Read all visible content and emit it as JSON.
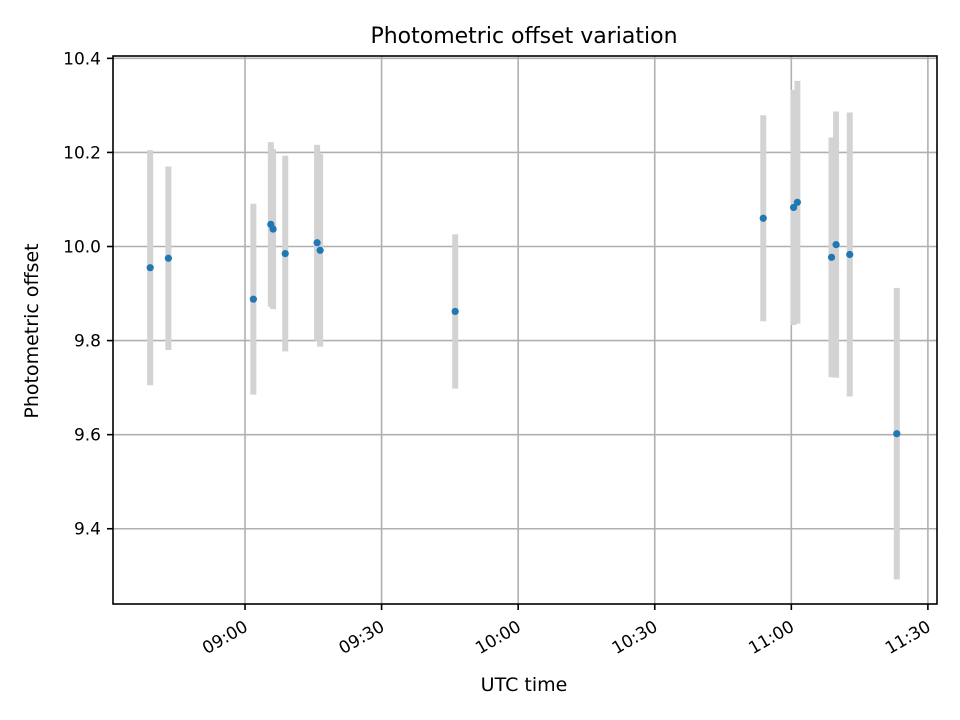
{
  "chart_data": {
    "type": "scatter",
    "title": "Photometric offset variation",
    "xlabel": "UTC time",
    "ylabel": "Photometric offset",
    "xlim": [
      "08:31:00",
      "11:32:00"
    ],
    "ylim": [
      9.24,
      10.405
    ],
    "grid": true,
    "x_ticks": [
      "09:00",
      "09:30",
      "10:00",
      "10:30",
      "11:00",
      "11:30"
    ],
    "y_ticks": [
      9.4,
      9.6,
      9.8,
      10.0,
      10.2,
      10.4
    ],
    "y_tick_labels": [
      "9.4",
      "9.6",
      "9.8",
      "10.0",
      "10.2",
      "10.4"
    ],
    "colors": {
      "point": "#1f77b4",
      "errorbar": "#d3d3d3",
      "grid": "#b0b0b0"
    },
    "points": [
      {
        "x": "08:39:10",
        "y": 9.955,
        "yerr": 0.25
      },
      {
        "x": "08:43:10",
        "y": 9.975,
        "yerr": 0.195
      },
      {
        "x": "09:01:50",
        "y": 9.888,
        "yerr": 0.203
      },
      {
        "x": "09:05:40",
        "y": 10.047,
        "yerr": 0.175
      },
      {
        "x": "09:06:10",
        "y": 10.037,
        "yerr": 0.17
      },
      {
        "x": "09:08:50",
        "y": 9.985,
        "yerr": 0.208
      },
      {
        "x": "09:15:50",
        "y": 10.008,
        "yerr": 0.208
      },
      {
        "x": "09:16:30",
        "y": 9.992,
        "yerr": 0.205
      },
      {
        "x": "09:46:10",
        "y": 9.862,
        "yerr": 0.164
      },
      {
        "x": "10:53:50",
        "y": 10.06,
        "yerr": 0.219
      },
      {
        "x": "11:00:30",
        "y": 10.083,
        "yerr": 0.25
      },
      {
        "x": "11:01:20",
        "y": 10.094,
        "yerr": 0.258
      },
      {
        "x": "11:08:50",
        "y": 9.977,
        "yerr": 0.255
      },
      {
        "x": "11:09:50",
        "y": 10.004,
        "yerr": 0.283
      },
      {
        "x": "11:12:50",
        "y": 9.983,
        "yerr": 0.302
      },
      {
        "x": "11:23:10",
        "y": 9.602,
        "yerr": 0.31
      }
    ]
  }
}
